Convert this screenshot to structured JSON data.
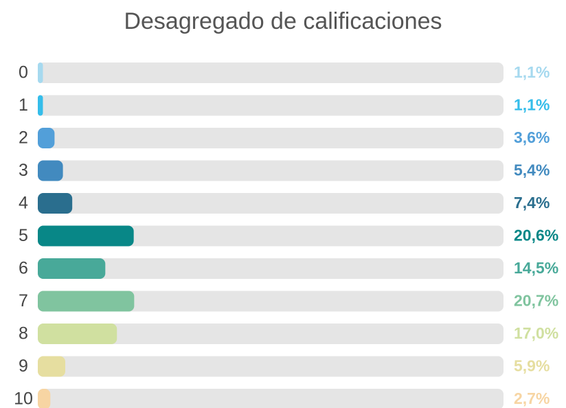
{
  "chart_data": {
    "type": "bar",
    "orientation": "horizontal",
    "title": "Desagregado de calificaciones",
    "categories": [
      "0",
      "1",
      "2",
      "3",
      "4",
      "5",
      "6",
      "7",
      "8",
      "9",
      "10"
    ],
    "values": [
      1.1,
      1.1,
      3.6,
      5.4,
      7.4,
      20.6,
      14.5,
      20.7,
      17.0,
      5.9,
      2.7
    ],
    "value_labels": [
      "1,1%",
      "1,1%",
      "3,6%",
      "5,4%",
      "7,4%",
      "20,6%",
      "14,5%",
      "20,7%",
      "17,0%",
      "5,9%",
      "2,7%"
    ],
    "colors": [
      "#a6d9ef",
      "#35bdea",
      "#529fd9",
      "#428abf",
      "#2a6e8e",
      "#088787",
      "#48a999",
      "#80c49f",
      "#d0e0a0",
      "#e6dea0",
      "#f7d5a3"
    ],
    "xlim": [
      0,
      100
    ]
  }
}
